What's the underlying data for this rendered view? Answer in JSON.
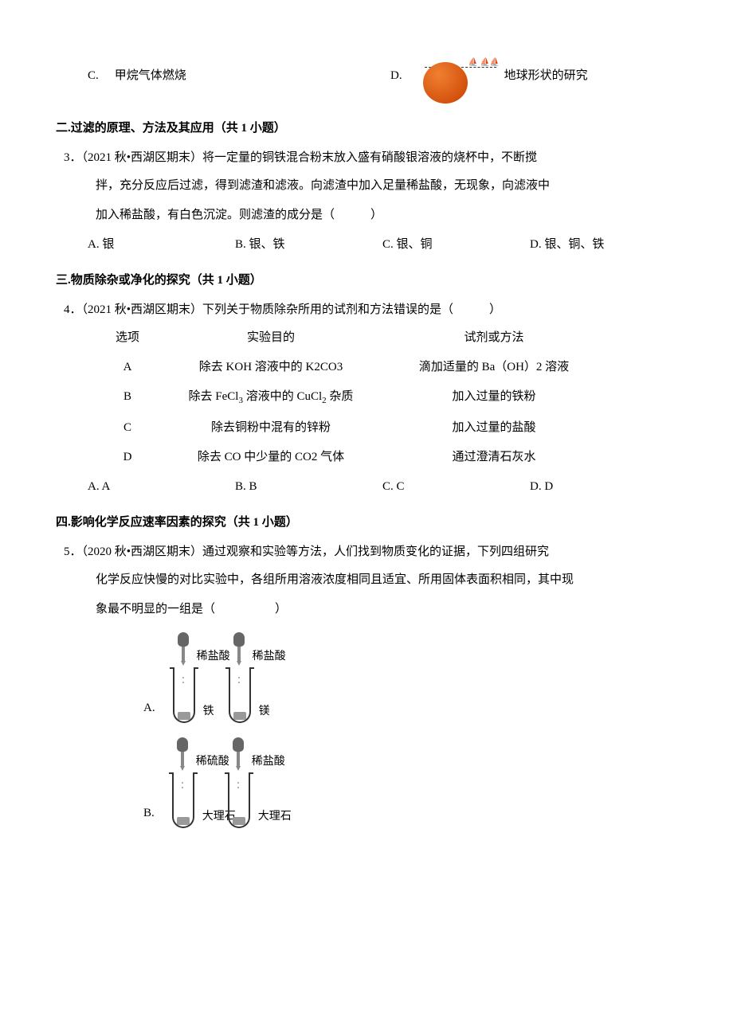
{
  "q2_options": {
    "c": {
      "letter": "C.",
      "text": "甲烷气体燃烧"
    },
    "d": {
      "letter": "D.",
      "text": "地球形状的研究"
    }
  },
  "section2": {
    "title": "二.过滤的原理、方法及其应用（共 1 小题）",
    "q3": {
      "num_line": "3．（2021 秋•西湖区期末）将一定量的铜铁混合粉末放入盛有硝酸银溶液的烧杯中，不断搅",
      "line2": "拌，充分反应后过滤，得到滤渣和滤液。向滤渣中加入足量稀盐酸，无现象，向滤液中",
      "line3": "加入稀盐酸，有白色沉淀。则滤渣的成分是（　　　）",
      "options": {
        "a": "A. 银",
        "b": "B. 银、铁",
        "c": "C. 银、铜",
        "d": "D. 银、铜、铁"
      }
    }
  },
  "section3": {
    "title": "三.物质除杂或净化的探究（共 1 小题）",
    "q4": {
      "num_line": "4．（2021 秋•西湖区期末）下列关于物质除杂所用的试剂和方法错误的是（　　　）",
      "header": {
        "c1": "选项",
        "c2": "实验目的",
        "c3": "试剂或方法"
      },
      "rows": [
        {
          "c1": "A",
          "c2": "除去 KOH 溶液中的 K2CO3",
          "c3": "滴加适量的 Ba（OH）2 溶液"
        },
        {
          "c1": "B",
          "c2_pre": "除去 FeCl",
          "c2_sub": "3",
          "c2_mid": " 溶液中的 CuCl",
          "c2_sub2": "2",
          "c2_post": " 杂质",
          "c3": "加入过量的铁粉",
          "has_sub": true
        },
        {
          "c1": "C",
          "c2": "除去铜粉中混有的锌粉",
          "c3": "加入过量的盐酸"
        },
        {
          "c1": "D",
          "c2": "除去 CO 中少量的 CO2 气体",
          "c3": "通过澄清石灰水"
        }
      ],
      "answers": {
        "a": "A. A",
        "b": "B. B",
        "c": "C. C",
        "d": "D. D"
      }
    }
  },
  "section4": {
    "title": "四.影响化学反应速率因素的探究（共 1 小题）",
    "q5": {
      "num_line": "5．（2020 秋•西湖区期末）通过观察和实验等方法，人们找到物质变化的证据，下列四组研究",
      "line2": "化学反应快慢的对比实验中，各组所用溶液浓度相同且适宜、所用固体表面积相同，其中现",
      "line3": "象最不明显的一组是（　　　　　）"
    },
    "diagrams": {
      "setA": {
        "label": "A.",
        "tube1": {
          "dropper": "稀盐酸",
          "solid": "铁"
        },
        "tube2": {
          "dropper": "稀盐酸",
          "solid": "镁"
        }
      },
      "setB": {
        "label": "B.",
        "tube1": {
          "dropper": "稀硫酸",
          "solid": "大理石"
        },
        "tube2": {
          "dropper": "稀盐酸",
          "solid": "大理石"
        }
      }
    }
  }
}
